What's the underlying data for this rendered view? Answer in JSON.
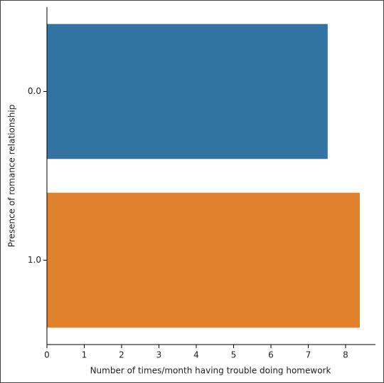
{
  "chart_data": {
    "type": "barh",
    "categories": [
      "0.0",
      "1.0"
    ],
    "series": [
      {
        "name": "0.0",
        "color": "#3274a1",
        "values": [
          7.52,
          null
        ]
      },
      {
        "name": "1.0",
        "color": "#e1812c",
        "values": [
          null,
          8.38
        ]
      }
    ],
    "values": [
      7.52,
      8.38
    ],
    "colors": [
      "#3274a1",
      "#e1812c"
    ],
    "x_label": "Number of times/month having trouble doing homework",
    "y_label": "Presence of romance relationship",
    "xlim": [
      0,
      8.8
    ],
    "xticks": [
      0,
      1,
      2,
      3,
      4,
      5,
      6,
      7,
      8
    ],
    "grid": false
  }
}
